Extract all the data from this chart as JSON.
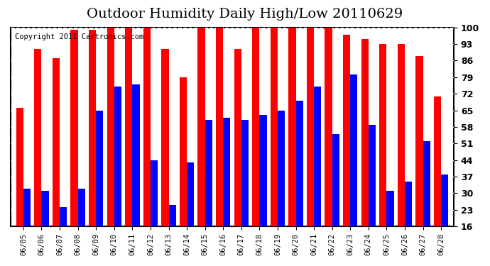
{
  "title": "Outdoor Humidity Daily High/Low 20110629",
  "copyright": "Copyright 2011 Cartronics.com",
  "dates": [
    "06/05",
    "06/06",
    "06/07",
    "06/08",
    "06/09",
    "06/10",
    "06/11",
    "06/12",
    "06/13",
    "06/14",
    "06/15",
    "06/16",
    "06/17",
    "06/18",
    "06/19",
    "06/20",
    "06/21",
    "06/22",
    "06/23",
    "06/24",
    "06/25",
    "06/26",
    "06/27",
    "06/28"
  ],
  "highs": [
    66,
    91,
    87,
    99,
    99,
    100,
    100,
    100,
    91,
    79,
    100,
    100,
    91,
    100,
    100,
    100,
    100,
    100,
    97,
    95,
    93,
    93,
    88,
    71
  ],
  "lows": [
    32,
    31,
    24,
    32,
    65,
    75,
    76,
    44,
    25,
    43,
    61,
    62,
    61,
    63,
    65,
    69,
    75,
    55,
    80,
    59,
    31,
    35,
    52,
    38
  ],
  "high_color": "#ff0000",
  "low_color": "#0000ff",
  "bg_color": "#ffffff",
  "plot_bg_color": "#ffffff",
  "grid_color": "#ffffff",
  "y_ticks": [
    16,
    23,
    30,
    37,
    44,
    51,
    58,
    65,
    72,
    79,
    86,
    93,
    100
  ],
  "ylim": [
    16,
    100
  ],
  "bar_width": 0.4,
  "title_fontsize": 14,
  "copyright_fontsize": 7.5
}
